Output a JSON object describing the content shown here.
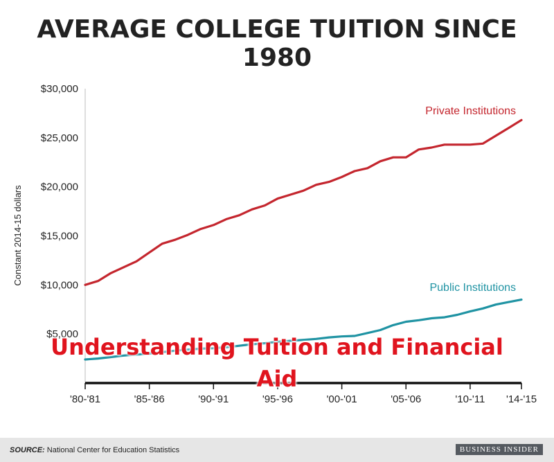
{
  "title": "AVERAGE COLLEGE TUITION SINCE 1980",
  "overlay_text": "Understanding Tuition and Financial Aid",
  "source_label": "SOURCE:",
  "source_text": "National Center for Education Statistics",
  "brand": "BUSINESS INSIDER",
  "chart_data": {
    "type": "line",
    "title": "AVERAGE COLLEGE TUITION SINCE 1980",
    "ylabel": "Constant 2014-15 dollars",
    "xlabel": "",
    "ylim": [
      0,
      30000
    ],
    "yticks": [
      {
        "value": 5000,
        "label": "$5,000"
      },
      {
        "value": 10000,
        "label": "$10,000"
      },
      {
        "value": 15000,
        "label": "$15,000"
      },
      {
        "value": 20000,
        "label": "$20,000"
      },
      {
        "value": 25000,
        "label": "$25,000"
      },
      {
        "value": 30000,
        "label": "$30,000"
      }
    ],
    "x": [
      "'80-'81",
      "'81-'82",
      "'82-'83",
      "'83-'84",
      "'84-'85",
      "'85-'86",
      "'86-'87",
      "'87-'88",
      "'88-'89",
      "'89-'90",
      "'90-'91",
      "'91-'92",
      "'92-'93",
      "'93-'94",
      "'94-'95",
      "'95-'96",
      "'96-'97",
      "'97-'98",
      "'98-'99",
      "'99-'00",
      "'00-'01",
      "'01-'02",
      "'02-'03",
      "'03-'04",
      "'04-'05",
      "'05-'06",
      "'06-'07",
      "'07-'08",
      "'08-'09",
      "'09-'10",
      "'10-'11",
      "'11-'12",
      "'12-'13",
      "'13-'14",
      "'14-'15"
    ],
    "xticks": [
      {
        "index": 0,
        "label": "'80-'81"
      },
      {
        "index": 5,
        "label": "'85-'86"
      },
      {
        "index": 10,
        "label": "'90-'91"
      },
      {
        "index": 15,
        "label": "'95-'96"
      },
      {
        "index": 20,
        "label": "'00-'01"
      },
      {
        "index": 25,
        "label": "'05-'06"
      },
      {
        "index": 30,
        "label": "'10-'11"
      },
      {
        "index": 34,
        "label": "'14-'15"
      }
    ],
    "series": [
      {
        "name": "Private Institutions",
        "color": "#c4262e",
        "values": [
          10000,
          10400,
          11200,
          11800,
          12400,
          13300,
          14200,
          14600,
          15100,
          15700,
          16100,
          16700,
          17100,
          17700,
          18100,
          18800,
          19200,
          19600,
          20200,
          20500,
          21000,
          21600,
          21900,
          22600,
          23000,
          23000,
          23800,
          24000,
          24300,
          24300,
          24300,
          24400,
          25200,
          26000,
          26800
        ]
      },
      {
        "name": "Public Institutions",
        "color": "#1f93a3",
        "values": [
          2400,
          2500,
          2650,
          2800,
          2900,
          3000,
          3150,
          3300,
          3400,
          3500,
          3550,
          3650,
          3800,
          3950,
          4050,
          4200,
          4300,
          4400,
          4500,
          4650,
          4750,
          4800,
          5100,
          5400,
          5900,
          6250,
          6400,
          6600,
          6700,
          6950,
          7300,
          7600,
          8000,
          8250,
          8500
        ]
      }
    ],
    "grid": false,
    "legend": "inline labels near line ends"
  }
}
